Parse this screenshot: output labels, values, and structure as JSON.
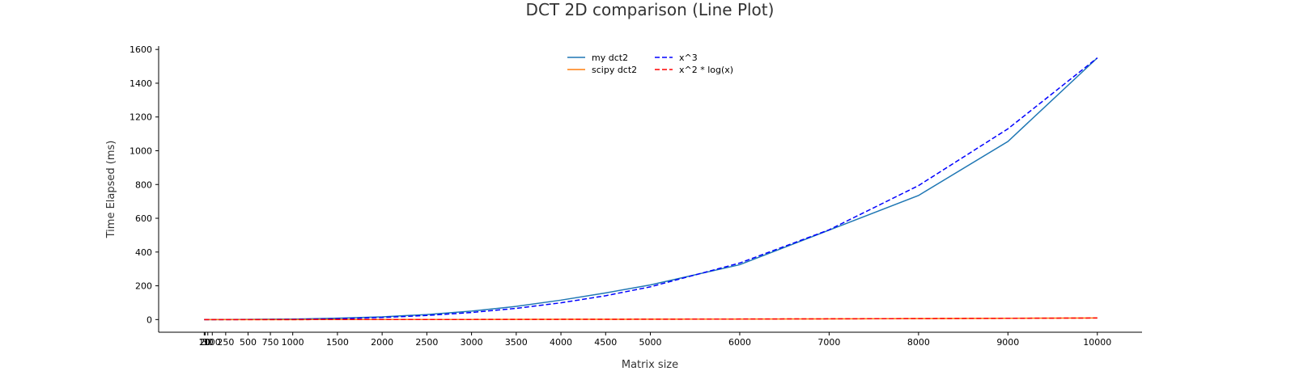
{
  "chart_data": {
    "type": "line",
    "title": "DCT 2D comparison (Line Plot)",
    "xlabel": "Matrix size",
    "ylabel": "Time Elapsed (ms)",
    "x": [
      10,
      20,
      50,
      100,
      250,
      500,
      750,
      1000,
      1500,
      2000,
      2500,
      3000,
      3500,
      4000,
      4500,
      5000,
      6000,
      7000,
      8000,
      9000,
      10000
    ],
    "x_tick_labels": [
      "10",
      "20",
      "50",
      "100",
      "250",
      "500",
      "750",
      "1000",
      "1500",
      "2000",
      "2500",
      "3000",
      "3500",
      "4000",
      "4500",
      "5000",
      "6000",
      "7000",
      "8000",
      "9000",
      "10000"
    ],
    "xlim": [
      -500,
      10500
    ],
    "ylim": [
      -75,
      1620
    ],
    "y_ticks": [
      0,
      200,
      400,
      600,
      800,
      1000,
      1200,
      1400,
      1600
    ],
    "series": [
      {
        "name": "my dct2",
        "color": "#1f77b4",
        "dash": "solid",
        "values": [
          0,
          0,
          0,
          0.1,
          0.5,
          1,
          2,
          3,
          8,
          16,
          30,
          50,
          78,
          115,
          158,
          205,
          325,
          530,
          735,
          1055,
          1550
        ]
      },
      {
        "name": "scipy dct2",
        "color": "#ff7f0e",
        "dash": "solid",
        "values": [
          0,
          0,
          0,
          0,
          0,
          0,
          0,
          0.1,
          0.2,
          0.3,
          0.5,
          0.7,
          1,
          1.3,
          1.7,
          2.1,
          3,
          4.2,
          5.7,
          7.5,
          9.5
        ]
      },
      {
        "name": "x^3",
        "color": "#0000ff",
        "dash": "dashed",
        "values": [
          0,
          0,
          0,
          0,
          0.02,
          0.19,
          0.65,
          1.55,
          5.2,
          12.4,
          24.2,
          41.9,
          66.5,
          99.2,
          141.2,
          193.8,
          334.8,
          531.7,
          793.6,
          1129.9,
          1550
        ]
      },
      {
        "name": "x^2 * log(x)",
        "color": "#ff0000",
        "dash": "dashed",
        "values": [
          0,
          0,
          0,
          0,
          0,
          0.02,
          0.04,
          0.07,
          0.16,
          0.3,
          0.49,
          0.72,
          1,
          1.33,
          1.7,
          2.13,
          3.13,
          4.35,
          5.81,
          7.45,
          9.3
        ]
      }
    ],
    "legend_position": "top-center",
    "grid": false
  }
}
